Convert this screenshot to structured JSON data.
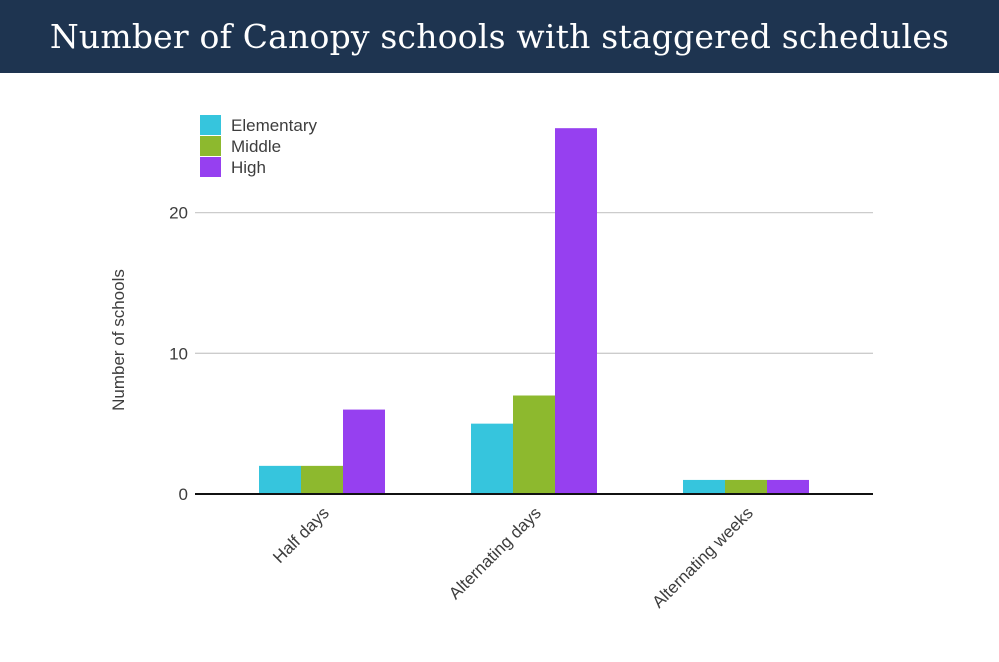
{
  "header": {
    "title": "Number of Canopy schools with staggered schedules",
    "background": "#1e3450"
  },
  "chart_data": {
    "type": "bar",
    "title": "Number of Canopy schools with staggered schedules",
    "xlabel": "",
    "ylabel": "Number of schools",
    "categories": [
      "Half days",
      "Alternating days",
      "Alternating weeks"
    ],
    "series": [
      {
        "name": "Elementary",
        "color": "#36c5dd",
        "values": [
          2,
          5,
          1
        ]
      },
      {
        "name": "Middle",
        "color": "#8db92e",
        "values": [
          2,
          7,
          1
        ]
      },
      {
        "name": "High",
        "color": "#9640f0",
        "values": [
          6,
          26,
          1
        ]
      }
    ],
    "ylim": [
      0,
      27
    ],
    "yticks": [
      0,
      10,
      20
    ],
    "grid": true,
    "legend_position": "top-left"
  }
}
